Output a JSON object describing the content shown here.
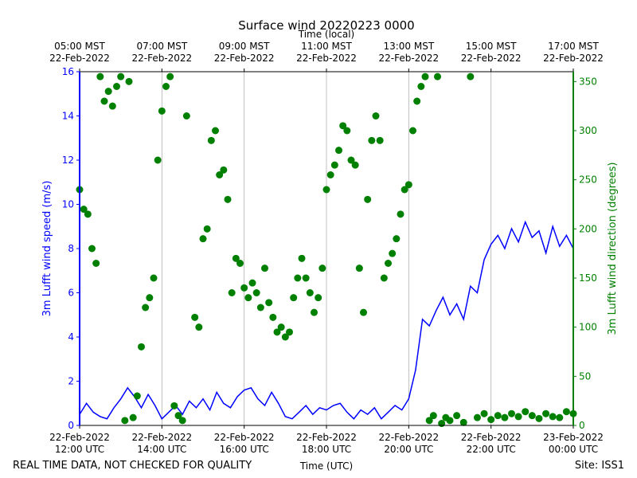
{
  "chart_data": {
    "type": "line",
    "title": "Surface wind 20220223 0000",
    "xlabel": "Time (UTC)",
    "x2label": "Time (local)",
    "ylabel": "3m Lufft wind speed (m/s)",
    "y2label": "3m Lufft wind direction (degrees)",
    "footer_left": "REAL TIME DATA, NOT CHECKED FOR QUALITY",
    "footer_right": "Site: ISS1",
    "xlim": [
      "2022-02-22T12:00",
      "2022-02-23T00:00"
    ],
    "xticks": [
      {
        "value": "2022-02-22T12:00",
        "label": "22-Feb-2022\n12:00 UTC"
      },
      {
        "value": "2022-02-22T14:00",
        "label": "22-Feb-2022\n14:00 UTC"
      },
      {
        "value": "2022-02-22T16:00",
        "label": "22-Feb-2022\n16:00 UTC"
      },
      {
        "value": "2022-02-22T18:00",
        "label": "22-Feb-2022\n18:00 UTC"
      },
      {
        "value": "2022-02-22T20:00",
        "label": "22-Feb-2022\n20:00 UTC"
      },
      {
        "value": "2022-02-22T22:00",
        "label": "22-Feb-2022\n22:00 UTC"
      },
      {
        "value": "2022-02-23T00:00",
        "label": "23-Feb-2022\n00:00 UTC"
      }
    ],
    "x2ticks": [
      {
        "value": "2022-02-22T12:00",
        "label": "05:00 MST\n22-Feb-2022"
      },
      {
        "value": "2022-02-22T14:00",
        "label": "07:00 MST\n22-Feb-2022"
      },
      {
        "value": "2022-02-22T16:00",
        "label": "09:00 MST\n22-Feb-2022"
      },
      {
        "value": "2022-02-22T18:00",
        "label": "11:00 MST\n22-Feb-2022"
      },
      {
        "value": "2022-02-22T20:00",
        "label": "13:00 MST\n22-Feb-2022"
      },
      {
        "value": "2022-02-22T22:00",
        "label": "15:00 MST\n22-Feb-2022"
      },
      {
        "value": "2022-02-23T00:00",
        "label": "17:00 MST\n22-Feb-2022"
      }
    ],
    "ylim": [
      0,
      16
    ],
    "yticks": [
      0,
      2,
      4,
      6,
      8,
      10,
      12,
      14,
      16
    ],
    "y2lim": [
      0,
      360
    ],
    "y2ticks": [
      0,
      50,
      100,
      150,
      200,
      250,
      300,
      350
    ],
    "grid": true,
    "series": [
      {
        "name": "3m Lufft wind speed",
        "type": "line",
        "color": "#0000ff",
        "x": [
          "2022-02-22T12:00",
          "2022-02-22T12:10",
          "2022-02-22T12:20",
          "2022-02-22T12:30",
          "2022-02-22T12:40",
          "2022-02-22T12:50",
          "2022-02-22T13:00",
          "2022-02-22T13:10",
          "2022-02-22T13:20",
          "2022-02-22T13:30",
          "2022-02-22T13:40",
          "2022-02-22T13:50",
          "2022-02-22T14:00",
          "2022-02-22T14:10",
          "2022-02-22T14:20",
          "2022-02-22T14:30",
          "2022-02-22T14:40",
          "2022-02-22T14:50",
          "2022-02-22T15:00",
          "2022-02-22T15:10",
          "2022-02-22T15:20",
          "2022-02-22T15:30",
          "2022-02-22T15:40",
          "2022-02-22T15:50",
          "2022-02-22T16:00",
          "2022-02-22T16:10",
          "2022-02-22T16:20",
          "2022-02-22T16:30",
          "2022-02-22T16:40",
          "2022-02-22T16:50",
          "2022-02-22T17:00",
          "2022-02-22T17:10",
          "2022-02-22T17:20",
          "2022-02-22T17:30",
          "2022-02-22T17:40",
          "2022-02-22T17:50",
          "2022-02-22T18:00",
          "2022-02-22T18:10",
          "2022-02-22T18:20",
          "2022-02-22T18:30",
          "2022-02-22T18:40",
          "2022-02-22T18:50",
          "2022-02-22T19:00",
          "2022-02-22T19:10",
          "2022-02-22T19:20",
          "2022-02-22T19:30",
          "2022-02-22T19:40",
          "2022-02-22T19:50",
          "2022-02-22T20:00",
          "2022-02-22T20:10",
          "2022-02-22T20:20",
          "2022-02-22T20:30",
          "2022-02-22T20:40",
          "2022-02-22T20:50",
          "2022-02-22T21:00",
          "2022-02-22T21:10",
          "2022-02-22T21:20",
          "2022-02-22T21:30",
          "2022-02-22T21:40",
          "2022-02-22T21:50",
          "2022-02-22T22:00",
          "2022-02-22T22:10",
          "2022-02-22T22:20",
          "2022-02-22T22:30",
          "2022-02-22T22:40",
          "2022-02-22T22:50",
          "2022-02-22T23:00",
          "2022-02-22T23:10",
          "2022-02-22T23:20",
          "2022-02-22T23:30",
          "2022-02-22T23:40",
          "2022-02-22T23:50",
          "2022-02-23T00:00"
        ],
        "values": [
          0.5,
          1.0,
          0.6,
          0.4,
          0.3,
          0.8,
          1.2,
          1.7,
          1.3,
          0.8,
          1.4,
          0.9,
          0.3,
          0.6,
          0.9,
          0.5,
          1.1,
          0.8,
          1.2,
          0.7,
          1.5,
          1.0,
          0.8,
          1.3,
          1.6,
          1.7,
          1.2,
          0.9,
          1.5,
          1.0,
          0.4,
          0.3,
          0.6,
          0.9,
          0.5,
          0.8,
          0.7,
          0.9,
          1.0,
          0.6,
          0.3,
          0.7,
          0.5,
          0.8,
          0.3,
          0.6,
          0.9,
          0.7,
          1.2,
          2.5,
          4.8,
          4.5,
          5.2,
          5.8,
          5.0,
          5.5,
          4.8,
          6.3,
          6.0,
          7.5,
          8.2,
          8.6,
          8.0,
          8.9,
          8.3,
          9.2,
          8.5,
          8.8,
          7.8,
          9.0,
          8.1,
          8.6,
          8.0
        ]
      },
      {
        "name": "3m Lufft wind direction",
        "type": "scatter",
        "axis": "y2",
        "color": "#008000",
        "x": [
          "2022-02-22T12:00",
          "2022-02-22T12:06",
          "2022-02-22T12:12",
          "2022-02-22T12:18",
          "2022-02-22T12:24",
          "2022-02-22T12:30",
          "2022-02-22T12:36",
          "2022-02-22T12:42",
          "2022-02-22T12:48",
          "2022-02-22T12:54",
          "2022-02-22T13:00",
          "2022-02-22T13:06",
          "2022-02-22T13:12",
          "2022-02-22T13:18",
          "2022-02-22T13:24",
          "2022-02-22T13:30",
          "2022-02-22T13:36",
          "2022-02-22T13:42",
          "2022-02-22T13:48",
          "2022-02-22T13:54",
          "2022-02-22T14:00",
          "2022-02-22T14:06",
          "2022-02-22T14:12",
          "2022-02-22T14:18",
          "2022-02-22T14:24",
          "2022-02-22T14:30",
          "2022-02-22T14:36",
          "2022-02-22T14:48",
          "2022-02-22T14:54",
          "2022-02-22T15:00",
          "2022-02-22T15:06",
          "2022-02-22T15:12",
          "2022-02-22T15:18",
          "2022-02-22T15:24",
          "2022-02-22T15:30",
          "2022-02-22T15:36",
          "2022-02-22T15:42",
          "2022-02-22T15:48",
          "2022-02-22T15:54",
          "2022-02-22T16:00",
          "2022-02-22T16:06",
          "2022-02-22T16:12",
          "2022-02-22T16:18",
          "2022-02-22T16:24",
          "2022-02-22T16:30",
          "2022-02-22T16:36",
          "2022-02-22T16:42",
          "2022-02-22T16:48",
          "2022-02-22T16:54",
          "2022-02-22T17:00",
          "2022-02-22T17:06",
          "2022-02-22T17:12",
          "2022-02-22T17:18",
          "2022-02-22T17:24",
          "2022-02-22T17:30",
          "2022-02-22T17:36",
          "2022-02-22T17:42",
          "2022-02-22T17:48",
          "2022-02-22T17:54",
          "2022-02-22T18:00",
          "2022-02-22T18:06",
          "2022-02-22T18:12",
          "2022-02-22T18:18",
          "2022-02-22T18:24",
          "2022-02-22T18:30",
          "2022-02-22T18:36",
          "2022-02-22T18:42",
          "2022-02-22T18:48",
          "2022-02-22T18:54",
          "2022-02-22T19:00",
          "2022-02-22T19:06",
          "2022-02-22T19:12",
          "2022-02-22T19:18",
          "2022-02-22T19:24",
          "2022-02-22T19:30",
          "2022-02-22T19:36",
          "2022-02-22T19:42",
          "2022-02-22T19:48",
          "2022-02-22T19:54",
          "2022-02-22T20:00",
          "2022-02-22T20:06",
          "2022-02-22T20:12",
          "2022-02-22T20:18",
          "2022-02-22T20:24",
          "2022-02-22T20:30",
          "2022-02-22T20:36",
          "2022-02-22T20:42",
          "2022-02-22T20:48",
          "2022-02-22T20:54",
          "2022-02-22T21:00",
          "2022-02-22T21:10",
          "2022-02-22T21:20",
          "2022-02-22T21:30",
          "2022-02-22T21:40",
          "2022-02-22T21:50",
          "2022-02-22T22:00",
          "2022-02-22T22:10",
          "2022-02-22T22:20",
          "2022-02-22T22:30",
          "2022-02-22T22:40",
          "2022-02-22T22:50",
          "2022-02-22T23:00",
          "2022-02-22T23:10",
          "2022-02-22T23:20",
          "2022-02-22T23:30",
          "2022-02-22T23:40",
          "2022-02-22T23:50",
          "2022-02-23T00:00"
        ],
        "values": [
          240,
          220,
          215,
          180,
          165,
          355,
          330,
          340,
          325,
          345,
          355,
          5,
          350,
          8,
          30,
          80,
          120,
          130,
          150,
          270,
          320,
          345,
          355,
          20,
          10,
          5,
          315,
          110,
          100,
          190,
          200,
          290,
          300,
          255,
          260,
          230,
          135,
          170,
          165,
          140,
          130,
          145,
          135,
          120,
          160,
          125,
          110,
          95,
          100,
          90,
          95,
          130,
          150,
          170,
          150,
          135,
          115,
          130,
          160,
          240,
          255,
          265,
          280,
          305,
          300,
          270,
          265,
          160,
          115,
          230,
          290,
          315,
          290,
          150,
          165,
          175,
          190,
          215,
          240,
          245,
          300,
          330,
          345,
          355,
          5,
          10,
          355,
          2,
          8,
          5,
          10,
          3,
          355,
          8,
          12,
          6,
          10,
          8,
          12,
          9,
          14,
          10,
          7,
          12,
          9,
          8,
          14,
          12
        ]
      }
    ]
  }
}
